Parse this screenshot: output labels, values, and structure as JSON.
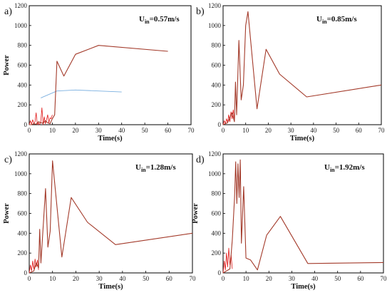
{
  "chart_data": [
    {
      "type": "line",
      "panel_label": "a)",
      "annotation": {
        "prefix": "U",
        "subscript": "in",
        "value": "=0.57m/s"
      },
      "xlabel": "Time(s)",
      "ylabel": "Power",
      "xlim": [
        0,
        70
      ],
      "ylim": [
        0,
        1200
      ],
      "xticks": [
        0,
        10,
        20,
        30,
        40,
        50,
        60,
        70
      ],
      "yticks": [
        0,
        200,
        400,
        600,
        800,
        1000,
        1200
      ],
      "colors": {
        "main": "#a33a2a",
        "secondary": "#7bb0e0",
        "noise": "#e01818"
      },
      "series": [
        {
          "role": "main",
          "x": [
            0,
            1,
            2,
            3,
            4,
            5,
            6,
            7,
            8,
            9,
            10,
            11,
            12,
            15,
            20,
            30,
            60
          ],
          "y": [
            0,
            0,
            10,
            5,
            30,
            20,
            15,
            40,
            20,
            10,
            60,
            100,
            640,
            490,
            710,
            800,
            740
          ]
        },
        {
          "role": "secondary",
          "x": [
            5,
            12,
            20,
            30,
            40
          ],
          "y": [
            270,
            340,
            350,
            340,
            330
          ]
        },
        {
          "role": "noise",
          "x": [
            0,
            0.5,
            1,
            1.5,
            2,
            2.5,
            3,
            3.5,
            4,
            4.5,
            5,
            5.5,
            6,
            6.5,
            7,
            7.5,
            8,
            8.5,
            9,
            9.5,
            10
          ],
          "y": [
            0,
            40,
            5,
            50,
            10,
            30,
            120,
            0,
            20,
            0,
            30,
            170,
            0,
            80,
            10,
            50,
            100,
            20,
            70,
            60,
            100
          ]
        }
      ]
    },
    {
      "type": "line",
      "panel_label": "b)",
      "annotation": {
        "prefix": "U",
        "subscript": "in",
        "value": "=0.85m/s"
      },
      "xlabel": "Time(s)",
      "ylabel": "",
      "xlim": [
        0,
        70
      ],
      "ylim": [
        0,
        1200
      ],
      "xticks": [
        0,
        10,
        20,
        30,
        40,
        50,
        60,
        70
      ],
      "yticks": [
        0,
        200,
        400,
        600,
        800,
        1000,
        1200
      ],
      "colors": {
        "main": "#a33a2a",
        "secondary": "#7bb0e0",
        "noise": "#e01818"
      },
      "series": [
        {
          "role": "main",
          "x": [
            0,
            2,
            4,
            5,
            5.5,
            6,
            7,
            8,
            9,
            10,
            11,
            15,
            19,
            25,
            37,
            70
          ],
          "y": [
            0,
            20,
            120,
            30,
            430,
            100,
            850,
            250,
            400,
            1000,
            1140,
            160,
            760,
            510,
            280,
            400
          ]
        },
        {
          "role": "noise",
          "x": [
            0,
            0.5,
            1,
            1.5,
            2,
            2.5,
            3,
            3.5,
            4,
            4.5,
            5
          ],
          "y": [
            0,
            40,
            10,
            60,
            20,
            100,
            30,
            130,
            60,
            150,
            40
          ]
        }
      ]
    },
    {
      "type": "line",
      "panel_label": "c)",
      "annotation": {
        "prefix": "U",
        "subscript": "in",
        "value": "=1.28m/s"
      },
      "xlabel": "Time(s)",
      "ylabel": "Power",
      "xlim": [
        0,
        70
      ],
      "ylim": [
        0,
        1200
      ],
      "xticks": [
        0,
        10,
        20,
        30,
        40,
        50,
        60,
        70
      ],
      "yticks": [
        0,
        200,
        400,
        600,
        800,
        1000,
        1200
      ],
      "colors": {
        "main": "#a33a2a",
        "secondary": "#7bb0e0",
        "noise": "#e01818"
      },
      "series": [
        {
          "role": "main",
          "x": [
            0,
            2,
            3,
            4,
            4.5,
            5,
            7,
            8,
            9,
            10,
            14,
            18,
            25,
            37,
            70
          ],
          "y": [
            0,
            20,
            100,
            50,
            440,
            100,
            850,
            260,
            420,
            1130,
            160,
            760,
            510,
            285,
            400
          ]
        },
        {
          "role": "noise",
          "x": [
            0,
            0.5,
            1,
            1.5,
            2,
            2.5,
            3,
            3.5,
            4
          ],
          "y": [
            0,
            80,
            20,
            120,
            40,
            140,
            60,
            130,
            30
          ]
        }
      ]
    },
    {
      "type": "line",
      "panel_label": "d)",
      "annotation": {
        "prefix": "U",
        "subscript": "in",
        "value": "=1.92m/s"
      },
      "xlabel": "Time(s)",
      "ylabel": "Power",
      "xlim": [
        0,
        70
      ],
      "ylim": [
        0,
        1200
      ],
      "xticks": [
        0,
        10,
        20,
        30,
        40,
        50,
        60,
        70
      ],
      "yticks": [
        0,
        200,
        400,
        600,
        800,
        1000,
        1200
      ],
      "colors": {
        "main": "#a33a2a",
        "secondary": "#7bb0e0",
        "noise": "#e01818"
      },
      "series": [
        {
          "role": "main",
          "x": [
            0,
            3,
            4,
            5,
            5.5,
            6,
            6.5,
            7,
            7.5,
            8,
            9,
            10,
            12,
            15,
            19,
            25,
            37,
            70
          ],
          "y": [
            0,
            40,
            330,
            760,
            1120,
            700,
            1100,
            760,
            1140,
            300,
            870,
            150,
            130,
            30,
            380,
            570,
            95,
            105
          ]
        },
        {
          "role": "noise",
          "x": [
            0,
            0.5,
            1,
            1.5,
            2,
            2.5,
            3,
            3.5,
            4
          ],
          "y": [
            0,
            120,
            30,
            200,
            60,
            250,
            80,
            180,
            40
          ]
        }
      ]
    }
  ]
}
